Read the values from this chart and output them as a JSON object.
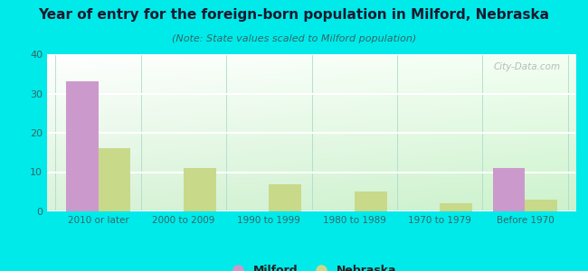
{
  "title": "Year of entry for the foreign-born population in Milford, Nebraska",
  "subtitle": "(Note: State values scaled to Milford population)",
  "categories": [
    "2010 or later",
    "2000 to 2009",
    "1990 to 1999",
    "1980 to 1989",
    "1970 to 1979",
    "Before 1970"
  ],
  "milford_values": [
    33,
    0,
    0,
    0,
    0,
    11
  ],
  "nebraska_values": [
    16,
    11,
    7,
    5,
    2,
    3
  ],
  "milford_color": "#cc99cc",
  "nebraska_color": "#c8d98a",
  "background_color": "#00eaea",
  "chart_bg_top": "#f5fff8",
  "chart_bg_bottom": "#d8f0d8",
  "ylim": [
    0,
    40
  ],
  "yticks": [
    0,
    10,
    20,
    30,
    40
  ],
  "bar_width": 0.38,
  "legend_milford": "Milford",
  "legend_nebraska": "Nebraska",
  "watermark": "City-Data.com",
  "title_fontsize": 11,
  "subtitle_fontsize": 8,
  "tick_fontsize": 7.5,
  "ytick_fontsize": 8
}
